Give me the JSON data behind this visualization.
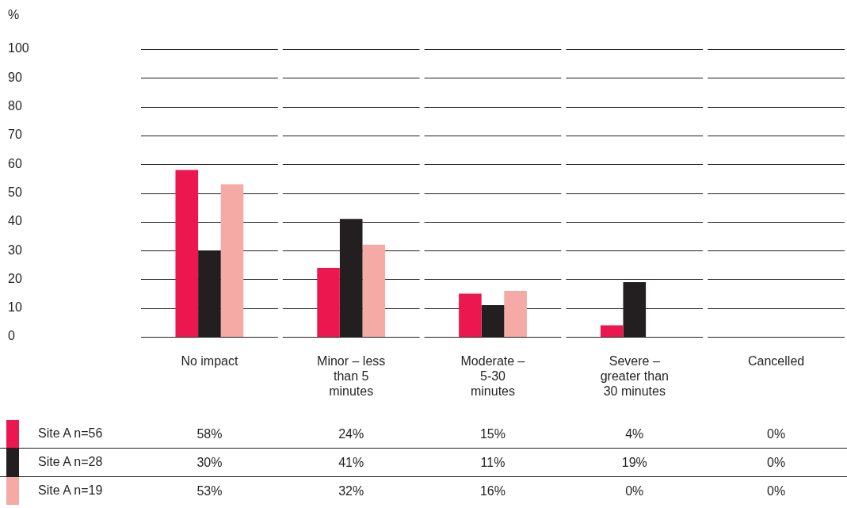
{
  "chart_data": {
    "type": "bar",
    "ylabel": "%",
    "categories": [
      "No impact",
      "Minor – less than 5 minutes",
      "Moderate – 5-30 minutes",
      "Severe – greater than 30 minutes",
      "Cancelled"
    ],
    "series": [
      {
        "name": "Site A n=56",
        "color": "#ec174f",
        "values": [
          58,
          24,
          15,
          4,
          0
        ],
        "value_labels": [
          "58%",
          "24%",
          "15%",
          "4%",
          "0%"
        ]
      },
      {
        "name": "Site A n=28",
        "color": "#231f20",
        "values": [
          30,
          41,
          11,
          19,
          0
        ],
        "value_labels": [
          "30%",
          "41%",
          "11%",
          "19%",
          "0%"
        ]
      },
      {
        "name": "Site A n=19",
        "color": "#f5aaa5",
        "values": [
          53,
          32,
          16,
          0,
          0
        ],
        "value_labels": [
          "53%",
          "32%",
          "16%",
          "0%",
          "0%"
        ]
      }
    ],
    "ylim": [
      0,
      100
    ],
    "yticks": [
      0,
      10,
      20,
      30,
      40,
      50,
      60,
      70,
      80,
      90,
      100
    ],
    "grid": "y",
    "legend": "bottom left"
  }
}
